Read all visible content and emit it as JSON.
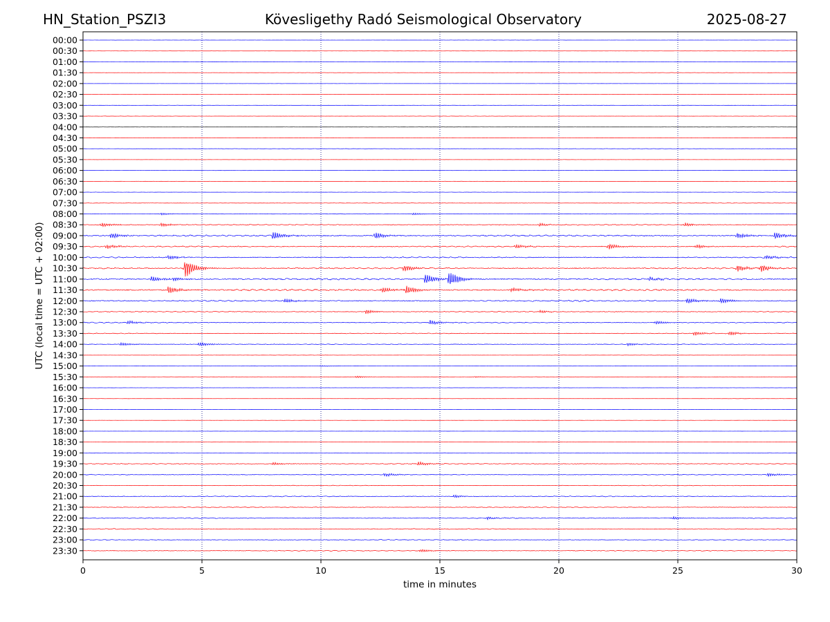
{
  "header": {
    "station": "HN_Station_PSZI3",
    "observatory": "Kövesligethy Radó Seismological Observatory",
    "date": "2025-08-27"
  },
  "chart_data": {
    "type": "line",
    "title": "Kövesligethy Radó Seismological Observatory",
    "xlabel": "time in minutes",
    "ylabel": "UTC (local time = UTC + 02:00)",
    "xlim": [
      0,
      30
    ],
    "xticks": [
      0,
      5,
      10,
      15,
      20,
      25,
      30
    ],
    "vertical_gridlines": [
      5,
      10,
      15,
      20,
      25
    ],
    "grid": "vertical dotted",
    "trace_colors": [
      "#0000ff",
      "#ff0000",
      "#000000"
    ],
    "rows": [
      {
        "label": "00:00",
        "color": "#0000ff",
        "activity": 0.1,
        "events": []
      },
      {
        "label": "00:30",
        "color": "#ff0000",
        "activity": 0.1,
        "events": []
      },
      {
        "label": "01:00",
        "color": "#0000ff",
        "activity": 0.1,
        "events": []
      },
      {
        "label": "01:30",
        "color": "#ff0000",
        "activity": 0.15,
        "events": []
      },
      {
        "label": "02:00",
        "color": "#0000ff",
        "activity": 0.1,
        "events": []
      },
      {
        "label": "02:30",
        "color": "#ff0000",
        "activity": 0.1,
        "events": []
      },
      {
        "label": "03:00",
        "color": "#0000ff",
        "activity": 0.15,
        "events": []
      },
      {
        "label": "03:30",
        "color": "#ff0000",
        "activity": 0.15,
        "events": []
      },
      {
        "label": "04:00",
        "color": "#000000",
        "activity": 0.1,
        "events": []
      },
      {
        "label": "04:30",
        "color": "#ff0000",
        "activity": 0.15,
        "events": []
      },
      {
        "label": "05:00",
        "color": "#0000ff",
        "activity": 0.2,
        "events": []
      },
      {
        "label": "05:30",
        "color": "#ff0000",
        "activity": 0.1,
        "events": []
      },
      {
        "label": "06:00",
        "color": "#0000ff",
        "activity": 0.1,
        "events": []
      },
      {
        "label": "06:30",
        "color": "#ff0000",
        "activity": 0.1,
        "events": []
      },
      {
        "label": "07:00",
        "color": "#0000ff",
        "activity": 0.15,
        "events": []
      },
      {
        "label": "07:30",
        "color": "#ff0000",
        "activity": 0.25,
        "events": []
      },
      {
        "label": "08:00",
        "color": "#0000ff",
        "activity": 0.35,
        "events": [
          {
            "t": 3.3,
            "a": 1.5
          },
          {
            "t": 13.9,
            "a": 1.5
          }
        ]
      },
      {
        "label": "08:30",
        "color": "#ff0000",
        "activity": 0.7,
        "events": [
          {
            "t": 0.8,
            "a": 3
          },
          {
            "t": 3.3,
            "a": 2.5
          },
          {
            "t": 19.2,
            "a": 2.5
          },
          {
            "t": 25.3,
            "a": 2.5
          }
        ]
      },
      {
        "label": "09:00",
        "color": "#0000ff",
        "activity": 1.0,
        "events": [
          {
            "t": 1.2,
            "a": 4
          },
          {
            "t": 8.0,
            "a": 6
          },
          {
            "t": 12.3,
            "a": 5
          },
          {
            "t": 27.5,
            "a": 4
          },
          {
            "t": 29.1,
            "a": 5
          }
        ]
      },
      {
        "label": "09:30",
        "color": "#ff0000",
        "activity": 0.8,
        "events": [
          {
            "t": 1.0,
            "a": 3
          },
          {
            "t": 18.2,
            "a": 3
          },
          {
            "t": 22.1,
            "a": 4
          },
          {
            "t": 25.8,
            "a": 3
          }
        ]
      },
      {
        "label": "10:00",
        "color": "#0000ff",
        "activity": 0.8,
        "events": [
          {
            "t": 3.6,
            "a": 3
          },
          {
            "t": 28.7,
            "a": 3
          }
        ]
      },
      {
        "label": "10:30",
        "color": "#ff0000",
        "activity": 0.9,
        "events": [
          {
            "t": 4.3,
            "a": 14
          },
          {
            "t": 13.5,
            "a": 5
          },
          {
            "t": 27.5,
            "a": 5
          },
          {
            "t": 28.5,
            "a": 5
          }
        ]
      },
      {
        "label": "11:00",
        "color": "#0000ff",
        "activity": 1.1,
        "events": [
          {
            "t": 2.9,
            "a": 4
          },
          {
            "t": 3.8,
            "a": 3
          },
          {
            "t": 14.4,
            "a": 8
          },
          {
            "t": 15.4,
            "a": 11
          },
          {
            "t": 23.8,
            "a": 3
          }
        ]
      },
      {
        "label": "11:30",
        "color": "#ff0000",
        "activity": 1.1,
        "events": [
          {
            "t": 3.6,
            "a": 5
          },
          {
            "t": 12.6,
            "a": 4
          },
          {
            "t": 13.6,
            "a": 6
          },
          {
            "t": 18.0,
            "a": 3
          }
        ]
      },
      {
        "label": "12:00",
        "color": "#0000ff",
        "activity": 0.9,
        "events": [
          {
            "t": 8.5,
            "a": 3
          },
          {
            "t": 25.4,
            "a": 4
          },
          {
            "t": 26.8,
            "a": 4
          }
        ]
      },
      {
        "label": "12:30",
        "color": "#ff0000",
        "activity": 0.6,
        "events": [
          {
            "t": 11.9,
            "a": 3
          },
          {
            "t": 19.2,
            "a": 2
          }
        ]
      },
      {
        "label": "13:00",
        "color": "#0000ff",
        "activity": 0.6,
        "events": [
          {
            "t": 1.9,
            "a": 2.5
          },
          {
            "t": 14.6,
            "a": 3.5
          },
          {
            "t": 24.1,
            "a": 2.5
          }
        ]
      },
      {
        "label": "13:30",
        "color": "#ff0000",
        "activity": 0.5,
        "events": [
          {
            "t": 25.7,
            "a": 3
          },
          {
            "t": 27.2,
            "a": 3
          }
        ]
      },
      {
        "label": "14:00",
        "color": "#0000ff",
        "activity": 0.45,
        "events": [
          {
            "t": 1.6,
            "a": 2.5
          },
          {
            "t": 4.9,
            "a": 3
          },
          {
            "t": 22.9,
            "a": 2
          }
        ]
      },
      {
        "label": "14:30",
        "color": "#ff0000",
        "activity": 0.15,
        "events": []
      },
      {
        "label": "15:00",
        "color": "#0000ff",
        "activity": 0.15,
        "events": [
          {
            "t": 10.0,
            "a": 1
          }
        ]
      },
      {
        "label": "15:30",
        "color": "#ff0000",
        "activity": 0.2,
        "events": [
          {
            "t": 11.5,
            "a": 1.5
          },
          {
            "t": 16.5,
            "a": 1
          }
        ]
      },
      {
        "label": "16:00",
        "color": "#0000ff",
        "activity": 0.1,
        "events": []
      },
      {
        "label": "16:30",
        "color": "#ff0000",
        "activity": 0.1,
        "events": []
      },
      {
        "label": "17:00",
        "color": "#0000ff",
        "activity": 0.1,
        "events": []
      },
      {
        "label": "17:30",
        "color": "#ff0000",
        "activity": 0.1,
        "events": []
      },
      {
        "label": "18:00",
        "color": "#0000ff",
        "activity": 0.1,
        "events": []
      },
      {
        "label": "18:30",
        "color": "#ff0000",
        "activity": 0.1,
        "events": []
      },
      {
        "label": "19:00",
        "color": "#0000ff",
        "activity": 0.2,
        "events": []
      },
      {
        "label": "19:30",
        "color": "#ff0000",
        "activity": 0.55,
        "events": [
          {
            "t": 8.0,
            "a": 2
          },
          {
            "t": 14.1,
            "a": 3
          }
        ]
      },
      {
        "label": "20:00",
        "color": "#0000ff",
        "activity": 0.5,
        "events": [
          {
            "t": 12.7,
            "a": 2.5
          },
          {
            "t": 28.8,
            "a": 2.5
          }
        ]
      },
      {
        "label": "20:30",
        "color": "#ff0000",
        "activity": 0.4,
        "events": []
      },
      {
        "label": "21:00",
        "color": "#0000ff",
        "activity": 0.6,
        "events": [
          {
            "t": 15.6,
            "a": 2
          }
        ]
      },
      {
        "label": "21:30",
        "color": "#ff0000",
        "activity": 0.5,
        "events": []
      },
      {
        "label": "22:00",
        "color": "#0000ff",
        "activity": 0.6,
        "events": [
          {
            "t": 17.0,
            "a": 2
          },
          {
            "t": 24.8,
            "a": 2
          }
        ]
      },
      {
        "label": "22:30",
        "color": "#ff0000",
        "activity": 0.55,
        "events": []
      },
      {
        "label": "23:00",
        "color": "#0000ff",
        "activity": 0.5,
        "events": []
      },
      {
        "label": "23:30",
        "color": "#ff0000",
        "activity": 0.55,
        "events": [
          {
            "t": 14.2,
            "a": 2
          }
        ]
      }
    ]
  }
}
